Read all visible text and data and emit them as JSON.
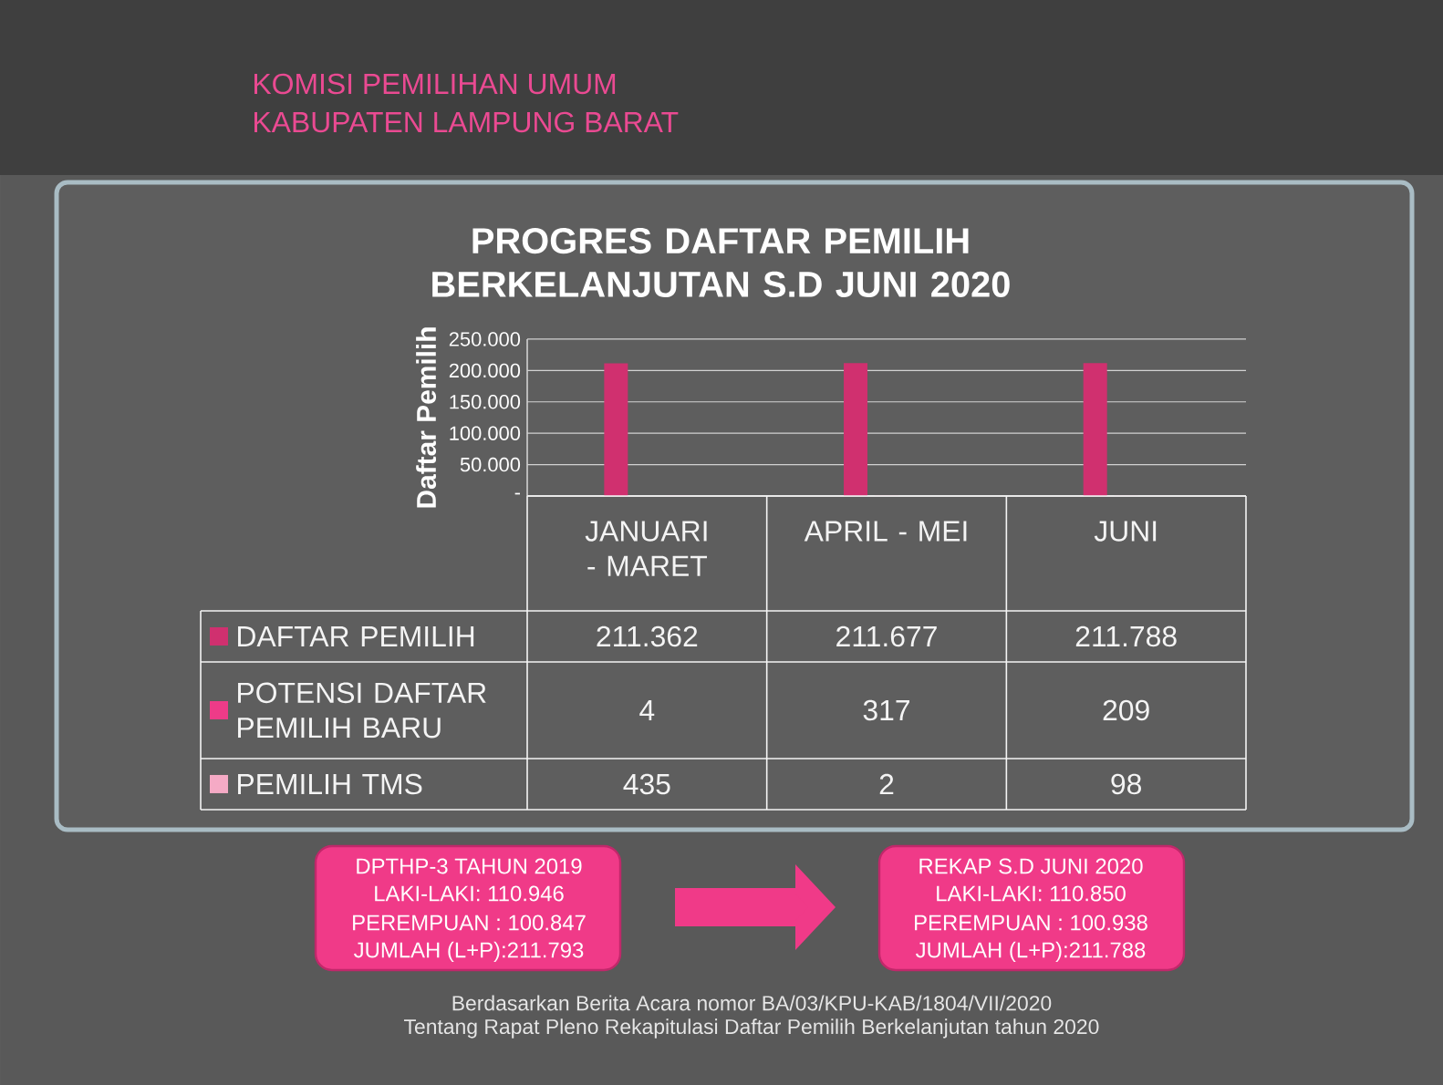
{
  "chart_data": {
    "type": "bar",
    "title": "PROGRES DAFTAR PEMILIH BERKELANJUTAN S.D JUNI 2020",
    "ylabel": "Daftar Pemilih",
    "categories": [
      "JANUARI - MARET",
      "APRIL - MEI",
      "JUNI"
    ],
    "series": [
      {
        "name": "DAFTAR PEMILIH",
        "color": "#d0306f",
        "values": [
          211362,
          211677,
          211788
        ],
        "value_labels": [
          "211.362",
          "211.677",
          "211.788"
        ]
      },
      {
        "name": "POTENSI DAFTAR PEMILIH BARU",
        "color": "#ee3b88",
        "values": [
          4,
          317,
          209
        ],
        "value_labels": [
          "4",
          "317",
          "209"
        ]
      },
      {
        "name": "PEMILIH TMS",
        "color": "#f5aac5",
        "values": [
          435,
          2,
          98
        ],
        "value_labels": [
          "435",
          "2",
          "98"
        ]
      }
    ],
    "ylim": [
      0,
      250000
    ],
    "yticks": [
      {
        "value": 0,
        "label": "-"
      },
      {
        "value": 50000,
        "label": "50.000"
      },
      {
        "value": 100000,
        "label": "100.000"
      },
      {
        "value": 150000,
        "label": "150.000"
      },
      {
        "value": 200000,
        "label": "200.000"
      },
      {
        "value": 250000,
        "label": "250.000"
      }
    ],
    "grid": "y",
    "legend": "bottom left",
    "annotations": [
      "KOMISI PEMILIHAN UMUM",
      "KABUPATEN LAMPUNG BARAT",
      "DPTHP-3 TAHUN 2019",
      "LAKI-LAKI: 110.946",
      "PEREMPUAN : 100.847",
      "JUMLAH (L+P):211.793",
      "REKAP S.D JUNI 2020",
      "LAKI-LAKI: 110.850",
      "PEREMPUAN : 100.938",
      "JUMLAH (L+P):211.788",
      "Berdasarkan Berita Acara nomor BA/03/KPU-KAB/1804/VII/2020",
      "Tentang Rapat Pleno Rekapitulasi Daftar Pemilih Berkelanjutan tahun 2020"
    ]
  }
}
